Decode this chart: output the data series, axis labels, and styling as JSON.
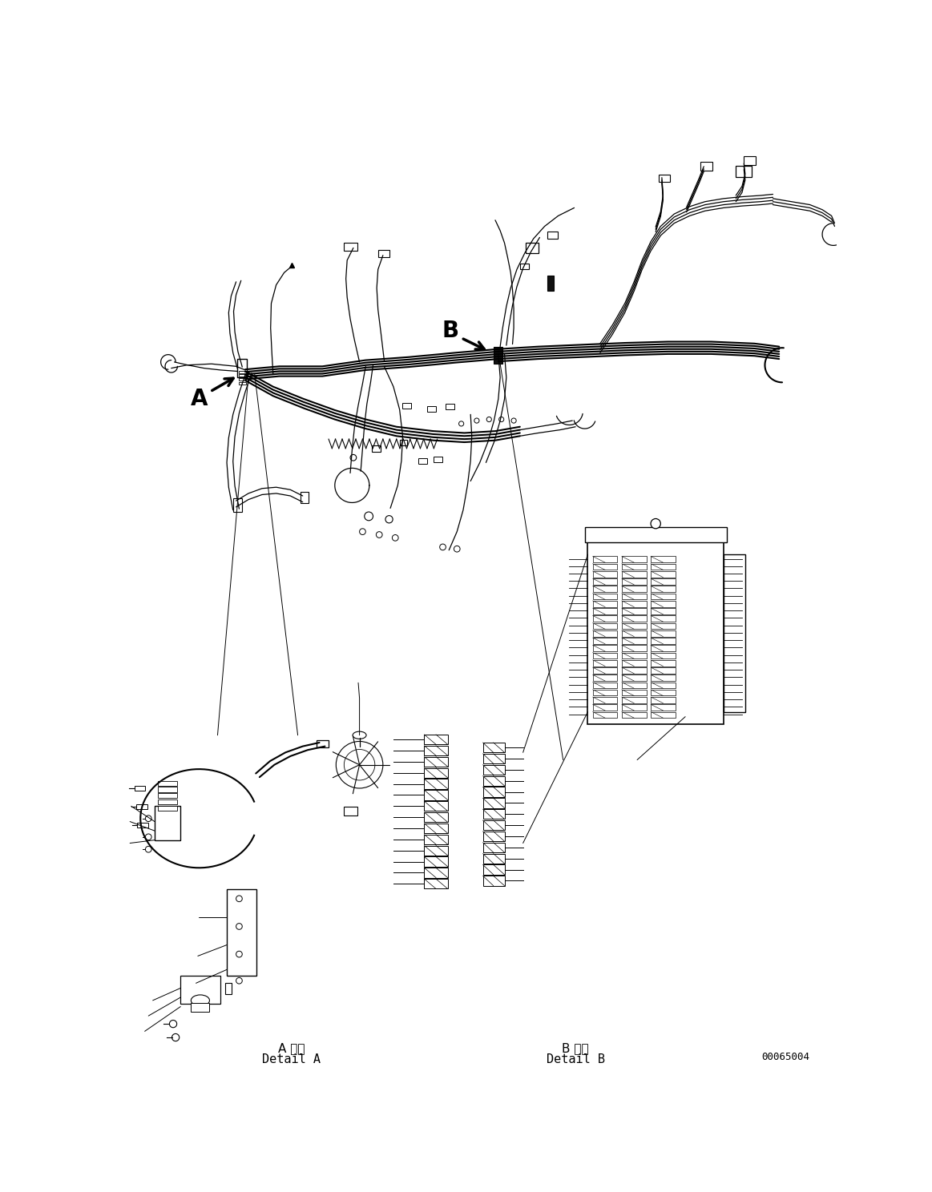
{
  "background_color": "#ffffff",
  "line_color": "#000000",
  "fig_width": 11.63,
  "fig_height": 14.88,
  "dpi": 100,
  "label_A": "A",
  "label_B": "B",
  "detail_A_kanji": "A 詳細",
  "detail_A_sub": "Detail A",
  "detail_B_kanji": "B 詳細",
  "detail_B_sub": "Detail B",
  "part_number": "00065004",
  "lw_main": 1.5,
  "lw_thin": 0.9
}
